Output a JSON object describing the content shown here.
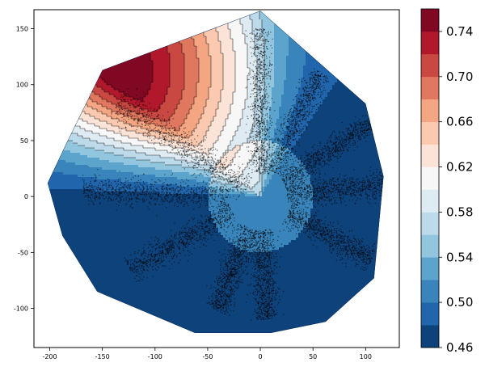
{
  "chart_data": {
    "type": "filled-contour",
    "colormap": "RdBu_r",
    "title": "",
    "xlabel": "",
    "ylabel": "",
    "xlim": [
      -215,
      132
    ],
    "ylim": [
      -135,
      167
    ],
    "x_ticks": [
      -200,
      -150,
      -100,
      -50,
      0,
      50,
      100
    ],
    "y_ticks": [
      -100,
      -50,
      0,
      50,
      100,
      150
    ],
    "colorbar": {
      "min": 0.46,
      "max": 0.76,
      "levels": [
        0.46,
        0.48,
        0.5,
        0.52,
        0.54,
        0.56,
        0.58,
        0.6,
        0.62,
        0.64,
        0.66,
        0.68,
        0.7,
        0.72,
        0.74,
        0.76
      ],
      "tick_values": [
        0.46,
        0.5,
        0.54,
        0.58,
        0.62,
        0.66,
        0.7,
        0.74
      ],
      "tick_labels": [
        "0.46",
        "0.50",
        "0.54",
        "0.58",
        "0.62",
        "0.66",
        "0.70",
        "0.74"
      ]
    },
    "region_vertices": [
      [
        0,
        166
      ],
      [
        100,
        83
      ],
      [
        117,
        18
      ],
      [
        108,
        -73
      ],
      [
        62,
        -112
      ],
      [
        10,
        -122
      ],
      [
        -62,
        -122
      ],
      [
        -155,
        -85
      ],
      [
        -188,
        -35
      ],
      [
        -202,
        12
      ],
      [
        -185,
        46
      ],
      [
        -150,
        113
      ]
    ],
    "field": {
      "base": 0.48,
      "center_plateau": {
        "center": [
          0,
          0
        ],
        "radius": 50,
        "value": 0.515
      },
      "hot_spot": {
        "center": [
          -140,
          112
        ],
        "peak": 0.76
      }
    },
    "sample_clusters": [
      {
        "angle_deg": 148,
        "radius_range": [
          15,
          160
        ],
        "spread": 7
      },
      {
        "angle_deg": 90,
        "radius_range": [
          20,
          150
        ],
        "spread": 5
      },
      {
        "angle_deg": 63,
        "radius_range": [
          25,
          125
        ],
        "spread": 5
      },
      {
        "angle_deg": 32,
        "radius_range": [
          25,
          130
        ],
        "spread": 5
      },
      {
        "angle_deg": 5,
        "radius_range": [
          25,
          120
        ],
        "spread": 6
      },
      {
        "angle_deg": -28,
        "radius_range": [
          30,
          120
        ],
        "spread": 6
      },
      {
        "angle_deg": -87,
        "radius_range": [
          30,
          110
        ],
        "spread": 6
      },
      {
        "angle_deg": -112,
        "radius_range": [
          30,
          110
        ],
        "spread": 6
      },
      {
        "angle_deg": -152,
        "radius_range": [
          30,
          140
        ],
        "spread": 6
      },
      {
        "angle_deg": 178,
        "radius_range": [
          30,
          170
        ],
        "spread": 6
      }
    ]
  }
}
